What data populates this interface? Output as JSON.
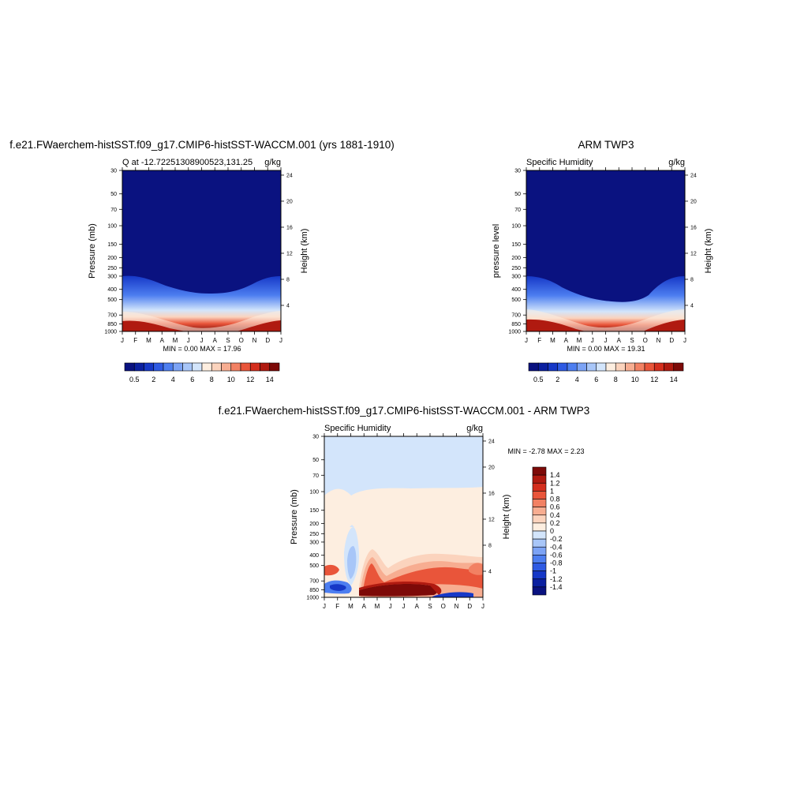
{
  "colors": {
    "scale": [
      "#0a1280",
      "#0b20a0",
      "#1638c7",
      "#2e5ae3",
      "#4d7ef0",
      "#7ca3f5",
      "#a8c6f8",
      "#d3e5fb",
      "#fdeee0",
      "#fbd3bd",
      "#f7ad91",
      "#f28163",
      "#e9553a",
      "#d42e1d",
      "#b01a10",
      "#7d0a08"
    ],
    "background_hi": "#0a1280",
    "diff_lowest": "#0a1280"
  },
  "months": [
    "J",
    "F",
    "M",
    "A",
    "M",
    "J",
    "J",
    "A",
    "S",
    "O",
    "N",
    "D",
    "J"
  ],
  "pressure_ticks": [
    "30",
    "50",
    "70",
    "100",
    "150",
    "200",
    "250",
    "300",
    "400",
    "500",
    "700",
    "850",
    "1000"
  ],
  "height_ticks": [
    "24",
    "20",
    "16",
    "12",
    "8",
    "4"
  ],
  "panel1": {
    "title": "f.e21.FWaerchem-histSST.f09_g17.CMIP6-histSST-WACCM.001 (yrs 1881-1910)",
    "left_label": "Q at -12.72251308900523,131.25",
    "right_label": "g/kg",
    "ylabel": "Pressure (mb)",
    "y2label": "Height (km)",
    "minmax": "MIN =   0.00 MAX =  17.96",
    "colorbar_labels": [
      "0.5",
      "2",
      "4",
      "6",
      "8",
      "10",
      "12",
      "14"
    ]
  },
  "panel2": {
    "title": "ARM TWP3",
    "left_label": "Specific Humidity",
    "right_label": "g/kg",
    "ylabel": "pressure level",
    "y2label": "Height (km)",
    "minmax": "MIN =   0.00 MAX =  19.31",
    "colorbar_labels": [
      "0.5",
      "2",
      "4",
      "6",
      "8",
      "10",
      "12",
      "14"
    ]
  },
  "panel3": {
    "title": "f.e21.FWaerchem-histSST.f09_g17.CMIP6-histSST-WACCM.001 - ARM TWP3",
    "left_label": "Specific Humidity",
    "right_label": "g/kg",
    "ylabel": "Pressure (mb)",
    "y2label": "Height (km)",
    "minmax": "MIN =  -2.78 MAX =   2.23",
    "colorbar_labels": [
      "1.4",
      "1.2",
      "1",
      "0.8",
      "0.6",
      "0.4",
      "0.2",
      "0",
      "-0.2",
      "-0.4",
      "-0.6",
      "-0.8",
      "-1",
      "-1.2",
      "-1.4"
    ]
  },
  "chart_data": [
    {
      "type": "heatmap",
      "title": "f.e21.FWaerchem-histSST.f09_g17.CMIP6-histSST-WACCM.001 (yrs 1881-1910)",
      "variable": "Q at -12.72251308900523,131.25",
      "units": "g/kg",
      "xlabel": "",
      "ylabel": "Pressure (mb)",
      "y2label": "Height (km)",
      "x": [
        "J",
        "F",
        "M",
        "A",
        "M",
        "J",
        "J",
        "A",
        "S",
        "O",
        "N",
        "D",
        "J"
      ],
      "levels": [
        0.5,
        1,
        2,
        3,
        4,
        5,
        6,
        7,
        8,
        9,
        10,
        11,
        12,
        13,
        14
      ],
      "top_of_moist_layer_mb": [
        300,
        310,
        350,
        380,
        400,
        410,
        410,
        400,
        380,
        340,
        300,
        290,
        300
      ],
      "surface_q_gkg": [
        15,
        15,
        14,
        12,
        10,
        9,
        8,
        9,
        10,
        12,
        14,
        15,
        15
      ],
      "min": 0.0,
      "max": 17.96
    },
    {
      "type": "heatmap",
      "title": "ARM TWP3",
      "variable": "Specific Humidity",
      "units": "g/kg",
      "xlabel": "",
      "ylabel": "pressure level",
      "y2label": "Height (km)",
      "x": [
        "J",
        "F",
        "M",
        "A",
        "M",
        "J",
        "J",
        "A",
        "S",
        "O",
        "N",
        "D",
        "J"
      ],
      "levels": [
        0.5,
        1,
        2,
        3,
        4,
        5,
        6,
        7,
        8,
        9,
        10,
        11,
        12,
        13,
        14
      ],
      "top_of_moist_layer_mb": [
        300,
        320,
        340,
        390,
        420,
        450,
        470,
        480,
        480,
        440,
        360,
        310,
        300
      ],
      "surface_q_gkg": [
        15,
        15,
        14,
        12,
        9,
        8,
        7,
        8,
        9,
        11,
        14,
        15,
        15
      ],
      "min": 0.0,
      "max": 19.31
    },
    {
      "type": "heatmap",
      "title": "f.e21.FWaerchem-histSST.f09_g17.CMIP6-histSST-WACCM.001 - ARM TWP3",
      "variable": "Specific Humidity",
      "units": "g/kg",
      "xlabel": "",
      "ylabel": "Pressure (mb)",
      "y2label": "Height (km)",
      "x": [
        "J",
        "F",
        "M",
        "A",
        "M",
        "J",
        "J",
        "A",
        "S",
        "O",
        "N",
        "D",
        "J"
      ],
      "levels": [
        -1.4,
        -1.2,
        -1,
        -0.8,
        -0.6,
        -0.4,
        -0.2,
        0,
        0.2,
        0.4,
        0.6,
        0.8,
        1,
        1.2,
        1.4
      ],
      "min": -2.78,
      "max": 2.23
    }
  ]
}
